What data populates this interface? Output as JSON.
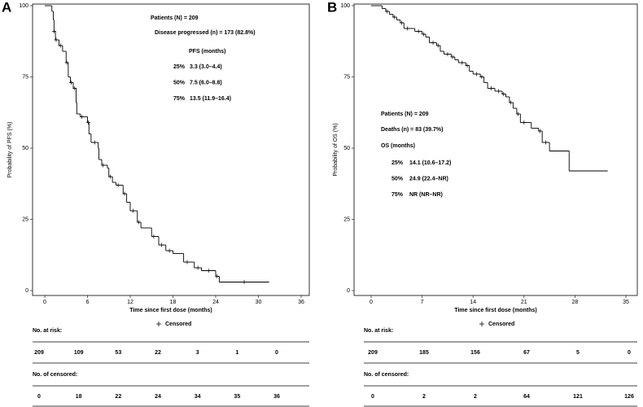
{
  "chart_data": [
    {
      "type": "step",
      "panel_label": "A",
      "y_label": "Probability of PFS (%)",
      "x_label": "Time since first dose (months)",
      "xlim": [
        0,
        36
      ],
      "xticks": [
        0,
        6,
        12,
        18,
        24,
        30,
        36
      ],
      "ylim": [
        0,
        100
      ],
      "yticks": [
        0,
        25,
        50,
        75,
        100
      ],
      "color": "#000000",
      "x": [
        0,
        1.0,
        1.2,
        1.3,
        1.5,
        2,
        2.5,
        3,
        3.3,
        3.6,
        4,
        4.4,
        4.5,
        5,
        6,
        6.2,
        6.5,
        7.5,
        7.6,
        8,
        8.8,
        9,
        9.5,
        10,
        11,
        11.5,
        12,
        13,
        13.5,
        15,
        16,
        17,
        18,
        19.5,
        21,
        22,
        24,
        24.5,
        31.5
      ],
      "values": [
        100,
        98,
        95,
        91,
        88,
        86,
        84,
        80,
        75,
        73,
        71,
        66,
        62,
        61,
        59,
        55,
        52,
        50,
        46,
        44,
        43,
        40,
        38,
        37,
        34,
        31,
        28,
        24,
        22,
        19,
        16,
        14,
        13,
        10,
        8,
        7,
        5,
        3,
        3
      ],
      "censored": {
        "x": [
          1.3,
          1.6,
          2.2,
          3.1,
          3.7,
          4.2,
          5.2,
          6.1,
          7.0,
          8.2,
          9.2,
          10.3,
          11.2,
          12.4,
          13.2,
          15.3,
          16.4,
          17.5,
          20.0,
          21.5,
          23.0,
          24.2,
          28.0
        ],
        "values": [
          91,
          88,
          86,
          80,
          73,
          71,
          61,
          59,
          52,
          44,
          40,
          37,
          34,
          28,
          24,
          19,
          16,
          14,
          10,
          8,
          7,
          5,
          3
        ]
      },
      "legend_label": "Censored",
      "annotations": [
        "Patients (N) = 209",
        "Disease progressed (n) = 173 (82.8%)",
        "PFS (months)"
      ],
      "summary_rows": [
        [
          "25%",
          "3.3 (3.0–4.4)"
        ],
        [
          "50%",
          "7.5 (6.0–8.8)"
        ],
        [
          "75%",
          "13.5 (11.9–16.4)"
        ]
      ],
      "risk_table": {
        "at_risk_label": "No. at risk:",
        "at_risk": [
          209,
          109,
          53,
          22,
          3,
          1,
          0
        ],
        "censored_label": "No. of censored:",
        "censored": [
          0,
          18,
          22,
          24,
          34,
          35,
          36
        ]
      }
    },
    {
      "type": "step",
      "panel_label": "B",
      "y_label": "Probability of OS (%)",
      "x_label": "Time since first dose (months)",
      "xlim": [
        0,
        35
      ],
      "xticks": [
        0,
        7,
        14,
        21,
        28,
        35
      ],
      "ylim": [
        0,
        100
      ],
      "yticks": [
        0,
        25,
        50,
        75,
        100
      ],
      "color": "#000000",
      "x": [
        0,
        1.5,
        2,
        2.5,
        3,
        3.5,
        4,
        4.5,
        6,
        7,
        7.5,
        8,
        9,
        9.5,
        10,
        11,
        11.5,
        12,
        13,
        13.5,
        14,
        15,
        15.5,
        16,
        17,
        18,
        18.5,
        19,
        19.5,
        20,
        20.5,
        22,
        23,
        23.5,
        24.5,
        27.2,
        32.5
      ],
      "values": [
        100,
        99,
        98,
        97,
        96,
        95,
        94,
        92,
        91,
        90,
        89,
        87,
        86,
        84,
        83,
        82,
        81,
        80,
        79,
        77,
        76,
        75,
        73,
        71,
        70,
        69,
        68,
        66,
        64,
        62,
        59,
        57,
        56,
        52,
        49,
        42,
        42
      ],
      "censored": {
        "x": [
          2.2,
          3.2,
          4.2,
          5.0,
          6.5,
          7.2,
          8.5,
          9.2,
          10.5,
          11.2,
          12.5,
          13.2,
          14.5,
          15.2,
          16.5,
          17.5,
          18.2,
          19.2,
          20.2,
          21.0,
          23.2,
          24.0
        ],
        "values": [
          98,
          96,
          94,
          92,
          91,
          90,
          87,
          86,
          83,
          82,
          80,
          79,
          76,
          75,
          71,
          70,
          69,
          66,
          62,
          59,
          56,
          52
        ]
      },
      "legend_label": "Censored",
      "annotations": [
        "Patients (N) = 209",
        "Deaths (n) = 83 (39.7%)",
        "OS (months)"
      ],
      "summary_rows": [
        [
          "25%",
          "14.1 (10.6–17.2)"
        ],
        [
          "50%",
          "24.9 (22.4–NR)"
        ],
        [
          "75%",
          "NR (NR–NR)"
        ]
      ],
      "risk_table": {
        "at_risk_label": "No. at risk:",
        "at_risk": [
          209,
          185,
          156,
          67,
          5,
          0
        ],
        "censored_label": "No. of censored:",
        "censored": [
          0,
          2,
          2,
          64,
          121,
          126
        ]
      }
    }
  ]
}
